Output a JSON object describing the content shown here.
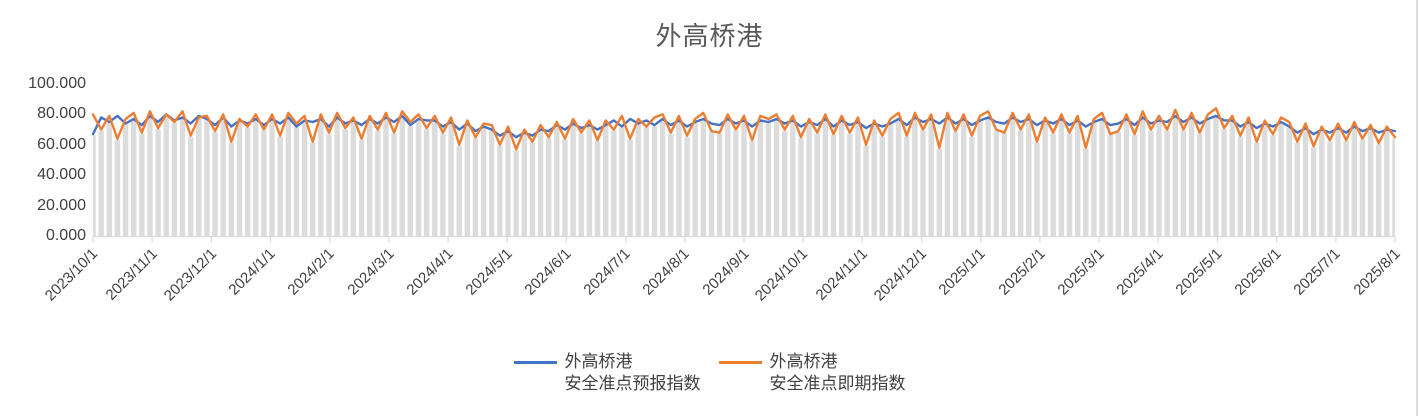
{
  "page": {
    "background": "#ffffff"
  },
  "chart_data": {
    "type": "line",
    "title": "外高桥港",
    "xlabel": "",
    "ylabel": "",
    "ylim": [
      0,
      100
    ],
    "grid": false,
    "legend_position": "bottom",
    "y_ticks": [
      "100.000",
      "80.000",
      "60.000",
      "40.000",
      "20.000",
      "0.000"
    ],
    "y_tick_values": [
      100,
      80,
      60,
      40,
      20,
      0
    ],
    "x_labels": [
      "2023/10/1",
      "2023/11/1",
      "2023/12/1",
      "2024/1/1",
      "2024/2/1",
      "2024/3/1",
      "2024/4/1",
      "2024/5/1",
      "2024/6/1",
      "2024/7/1",
      "2024/8/1",
      "2024/9/1",
      "2024/10/1",
      "2024/11/1",
      "2024/12/1",
      "2025/1/1",
      "2025/2/1",
      "2025/3/1",
      "2025/4/1",
      "2025/5/1",
      "2025/6/1",
      "2025/7/1",
      "2025/8/1"
    ],
    "drop_lines_color": "#dcdcdc",
    "axis_color": "#d9d9d9",
    "series": [
      {
        "name": "外高桥港 安全准点预报指数",
        "color": "#4472C4",
        "values": [
          67,
          78,
          75,
          79,
          74,
          77,
          73,
          79,
          75,
          80,
          76,
          78,
          74,
          79,
          77,
          73,
          78,
          72,
          76,
          74,
          77,
          73,
          77,
          74,
          78,
          72,
          76,
          75,
          77,
          72,
          78,
          74,
          76,
          73,
          77,
          74,
          78,
          75,
          79,
          73,
          77,
          76,
          76,
          72,
          75,
          70,
          74,
          69,
          72,
          70,
          66,
          69,
          65,
          68,
          66,
          70,
          69,
          73,
          70,
          74,
          71,
          73,
          70,
          73,
          76,
          72,
          77,
          74,
          76,
          73,
          77,
          73,
          76,
          72,
          75,
          77,
          74,
          73,
          77,
          74,
          76,
          72,
          76,
          75,
          77,
          74,
          76,
          72,
          75,
          73,
          77,
          72,
          76,
          73,
          75,
          71,
          74,
          72,
          74,
          77,
          73,
          78,
          75,
          77,
          74,
          78,
          74,
          77,
          73,
          76,
          78,
          75,
          74,
          78,
          75,
          77,
          73,
          76,
          74,
          77,
          73,
          76,
          72,
          75,
          77,
          73,
          74,
          77,
          73,
          78,
          74,
          76,
          75,
          79,
          75,
          78,
          74,
          77,
          79,
          76,
          76,
          72,
          75,
          71,
          74,
          72,
          75,
          72,
          68,
          71,
          67,
          70,
          68,
          71,
          68,
          72,
          69,
          71,
          68,
          70,
          69
        ]
      },
      {
        "name": "外高桥港 安全准点即期指数",
        "color": "#ED7D31",
        "values": [
          80,
          70,
          79,
          64,
          77,
          81,
          68,
          82,
          71,
          80,
          75,
          82,
          66,
          78,
          79,
          69,
          80,
          62,
          77,
          72,
          80,
          70,
          80,
          66,
          81,
          74,
          79,
          62,
          80,
          68,
          81,
          71,
          78,
          64,
          79,
          70,
          81,
          68,
          82,
          75,
          80,
          71,
          79,
          68,
          78,
          60,
          76,
          65,
          74,
          73,
          60,
          72,
          57,
          70,
          62,
          73,
          65,
          75,
          64,
          77,
          68,
          76,
          63,
          76,
          70,
          79,
          64,
          77,
          72,
          78,
          80,
          68,
          79,
          66,
          77,
          81,
          69,
          68,
          80,
          70,
          79,
          63,
          79,
          77,
          80,
          70,
          79,
          65,
          77,
          68,
          80,
          67,
          79,
          68,
          78,
          60,
          76,
          66,
          77,
          81,
          66,
          81,
          70,
          80,
          58,
          81,
          69,
          80,
          66,
          79,
          82,
          70,
          68,
          81,
          70,
          80,
          62,
          78,
          68,
          80,
          68,
          79,
          58,
          77,
          81,
          67,
          69,
          80,
          67,
          82,
          70,
          79,
          70,
          83,
          70,
          81,
          68,
          80,
          84,
          71,
          79,
          66,
          78,
          62,
          76,
          67,
          78,
          75,
          62,
          74,
          59,
          72,
          63,
          74,
          63,
          75,
          64,
          73,
          61,
          72,
          65
        ]
      }
    ]
  },
  "legend": {
    "items": [
      {
        "label_line1": "外高桥港",
        "label_line2": "安全准点预报指数",
        "color": "#4472C4"
      },
      {
        "label_line1": "外高桥港",
        "label_line2": "安全准点即期指数",
        "color": "#ED7D31"
      }
    ]
  }
}
